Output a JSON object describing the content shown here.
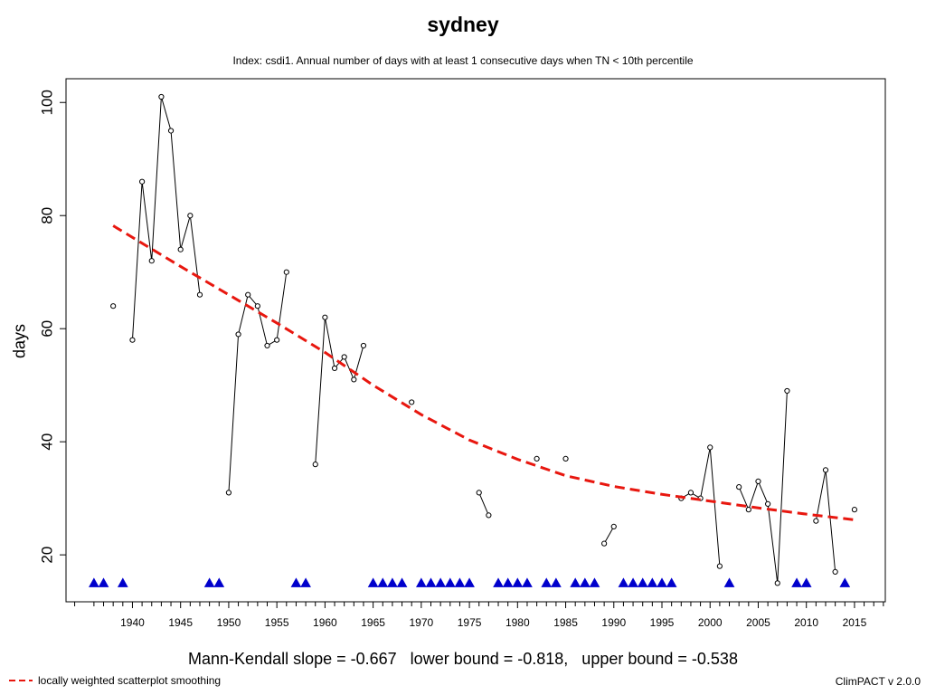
{
  "chart_data": {
    "type": "line",
    "title": "sydney",
    "subtitle": "Index: csdi1. Annual number of days with at least 1 consecutive days when TN < 10th percentile",
    "xlabel": "",
    "ylabel": "days",
    "xlim": [
      1933.1,
      2018.2
    ],
    "ylim": [
      11.7,
      104.2
    ],
    "x_ticks": [
      1940,
      1945,
      1950,
      1955,
      1960,
      1965,
      1970,
      1975,
      1980,
      1985,
      1990,
      1995,
      2000,
      2005,
      2010,
      2015
    ],
    "y_ticks": [
      20,
      40,
      60,
      80,
      100
    ],
    "grid": false,
    "series": [
      {
        "type": "line+points",
        "color": "#000000",
        "points": [
          [
            1938,
            64
          ],
          [
            1939,
            null
          ],
          [
            1940,
            58
          ],
          [
            1941,
            86
          ],
          [
            1942,
            72
          ],
          [
            1943,
            101
          ],
          [
            1944,
            95
          ],
          [
            1945,
            74
          ],
          [
            1946,
            80
          ],
          [
            1947,
            66
          ],
          [
            1948,
            null
          ],
          [
            1949,
            null
          ],
          [
            1950,
            31
          ],
          [
            1951,
            59
          ],
          [
            1952,
            66
          ],
          [
            1953,
            64
          ],
          [
            1954,
            57
          ],
          [
            1955,
            58
          ],
          [
            1956,
            70
          ],
          [
            1957,
            null
          ],
          [
            1958,
            null
          ],
          [
            1959,
            36
          ],
          [
            1960,
            62
          ],
          [
            1961,
            53
          ],
          [
            1962,
            55
          ],
          [
            1963,
            51
          ],
          [
            1964,
            57
          ],
          [
            1965,
            null
          ],
          [
            1966,
            null
          ],
          [
            1967,
            null
          ],
          [
            1968,
            null
          ],
          [
            1969,
            47
          ],
          [
            1970,
            null
          ],
          [
            1971,
            null
          ],
          [
            1972,
            null
          ],
          [
            1973,
            null
          ],
          [
            1974,
            null
          ],
          [
            1975,
            null
          ],
          [
            1976,
            31
          ],
          [
            1977,
            27
          ],
          [
            1978,
            null
          ],
          [
            1979,
            null
          ],
          [
            1980,
            null
          ],
          [
            1981,
            null
          ],
          [
            1982,
            37
          ],
          [
            1983,
            null
          ],
          [
            1984,
            null
          ],
          [
            1985,
            37
          ],
          [
            1986,
            null
          ],
          [
            1987,
            null
          ],
          [
            1988,
            null
          ],
          [
            1989,
            22
          ],
          [
            1990,
            25
          ],
          [
            1991,
            null
          ],
          [
            1992,
            null
          ],
          [
            1993,
            null
          ],
          [
            1994,
            null
          ],
          [
            1995,
            null
          ],
          [
            1996,
            null
          ],
          [
            1997,
            30
          ],
          [
            1998,
            31
          ],
          [
            1999,
            30
          ],
          [
            2000,
            39
          ],
          [
            2001,
            18
          ],
          [
            2002,
            null
          ],
          [
            2003,
            32
          ],
          [
            2004,
            28
          ],
          [
            2005,
            33
          ],
          [
            2006,
            29
          ],
          [
            2007,
            15
          ],
          [
            2008,
            49
          ],
          [
            2009,
            null
          ],
          [
            2010,
            null
          ],
          [
            2011,
            26
          ],
          [
            2012,
            35
          ],
          [
            2013,
            17
          ],
          [
            2014,
            null
          ],
          [
            2015,
            28
          ]
        ]
      },
      {
        "name": "locally weighted scatterplot smoothing",
        "type": "smooth",
        "color": "#e8170f",
        "dash": "dashed",
        "x": [
          1938,
          1945,
          1950,
          1955,
          1960,
          1965,
          1970,
          1975,
          1980,
          1985,
          1990,
          1995,
          2000,
          2005,
          2010,
          2015
        ],
        "y": [
          78.2,
          71,
          66,
          61,
          55.8,
          50,
          44.8,
          40.3,
          36.9,
          34,
          32.1,
          30.7,
          29.5,
          28.3,
          27.2,
          26.2
        ]
      },
      {
        "name": "missing years",
        "type": "markers",
        "color": "#0000cc",
        "marker": "triangle",
        "y": 15,
        "x": [
          1936,
          1937,
          1939,
          1948,
          1949,
          1957,
          1958,
          1965,
          1966,
          1967,
          1968,
          1970,
          1971,
          1972,
          1973,
          1974,
          1975,
          1978,
          1979,
          1980,
          1981,
          1983,
          1984,
          1986,
          1987,
          1988,
          1991,
          1992,
          1993,
          1994,
          1995,
          1996,
          2002,
          2009,
          2010,
          2014
        ]
      }
    ]
  },
  "stats_text": "Mann-Kendall slope = -0.667   lower bound = -0.818,   upper bound = -0.538",
  "legend_label": "locally weighted scatterplot smoothing",
  "credit": "ClimPACT v 2.0.0"
}
